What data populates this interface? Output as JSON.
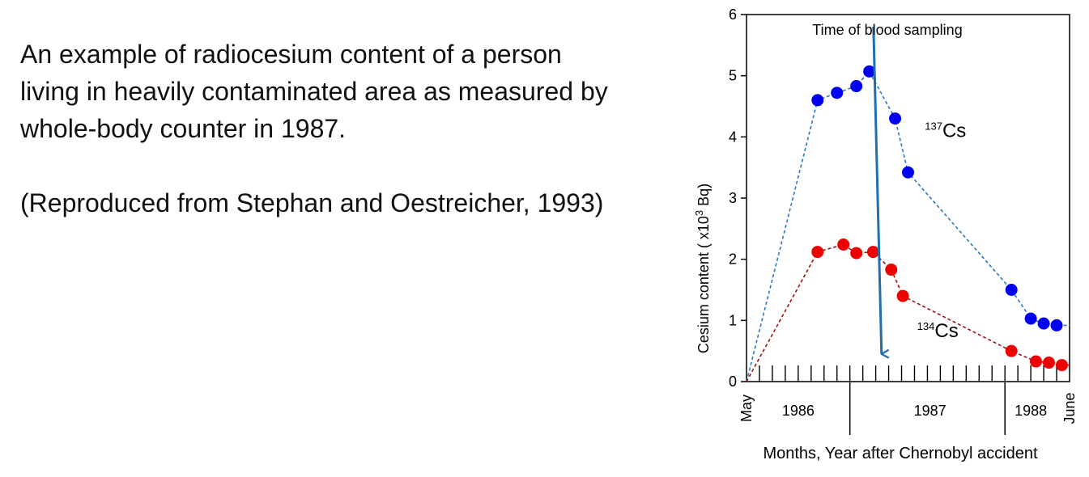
{
  "description": {
    "lines": [
      "An example of radiocesium content of a person",
      "living in heavily contaminated area as  measured by",
      "whole-body counter in 1987."
    ],
    "reference": "(Reproduced from Stephan and Oestreicher, 1993)"
  },
  "chart_data": {
    "type": "line",
    "title": "",
    "ylabel_prefix": "Cesium content ( x10",
    "ylabel_sup": "3",
    "ylabel_suffix": " Bq)",
    "xlabel": "Months, Year after Chernobyl accident",
    "ylim": [
      0,
      6
    ],
    "xlim": [
      0,
      25
    ],
    "y_ticks": [
      0,
      1,
      2,
      3,
      4,
      5,
      6
    ],
    "x_start_label": "May",
    "x_end_label": "June",
    "year_labels": [
      {
        "text": "1986",
        "x": 4
      },
      {
        "text": "1987",
        "x": 14.2
      },
      {
        "text": "1988",
        "x": 22
      }
    ],
    "year_dividers": [
      8,
      20
    ],
    "month_tick_count": 25,
    "annotation": {
      "text": "Time of blood sampling",
      "x": 10.2,
      "y_top": 5.8,
      "y_bottom": 0.45,
      "color": "#1f6fb0"
    },
    "series": [
      {
        "label_sup": "137",
        "label_text": "Cs",
        "label_x": 13.8,
        "label_y": 4.0,
        "color": "#0000ee",
        "line_color": "#2a78c8",
        "x": [
          0,
          5.5,
          7.0,
          8.5,
          9.5,
          11.5,
          12.5,
          20.5,
          22.0,
          23.0,
          24.0,
          25.0
        ],
        "y": [
          0,
          4.6,
          4.72,
          4.83,
          5.07,
          4.3,
          3.42,
          1.5,
          1.03,
          0.95,
          0.92,
          0.92
        ],
        "markers": [
          false,
          true,
          true,
          true,
          true,
          true,
          true,
          true,
          true,
          true,
          true,
          false
        ]
      },
      {
        "label_sup": "134",
        "label_text": "Cs",
        "label_x": 13.2,
        "label_y": 0.73,
        "color": "#ee0000",
        "line_color": "#a01010",
        "x": [
          0,
          5.5,
          7.5,
          8.5,
          9.8,
          11.2,
          12.1,
          20.5,
          22.4,
          23.4,
          24.4,
          25.0
        ],
        "y": [
          0,
          2.12,
          2.24,
          2.1,
          2.12,
          1.83,
          1.4,
          0.5,
          0.33,
          0.31,
          0.27,
          0.27
        ],
        "markers": [
          false,
          true,
          true,
          true,
          true,
          true,
          true,
          true,
          true,
          true,
          true,
          false
        ]
      }
    ]
  }
}
